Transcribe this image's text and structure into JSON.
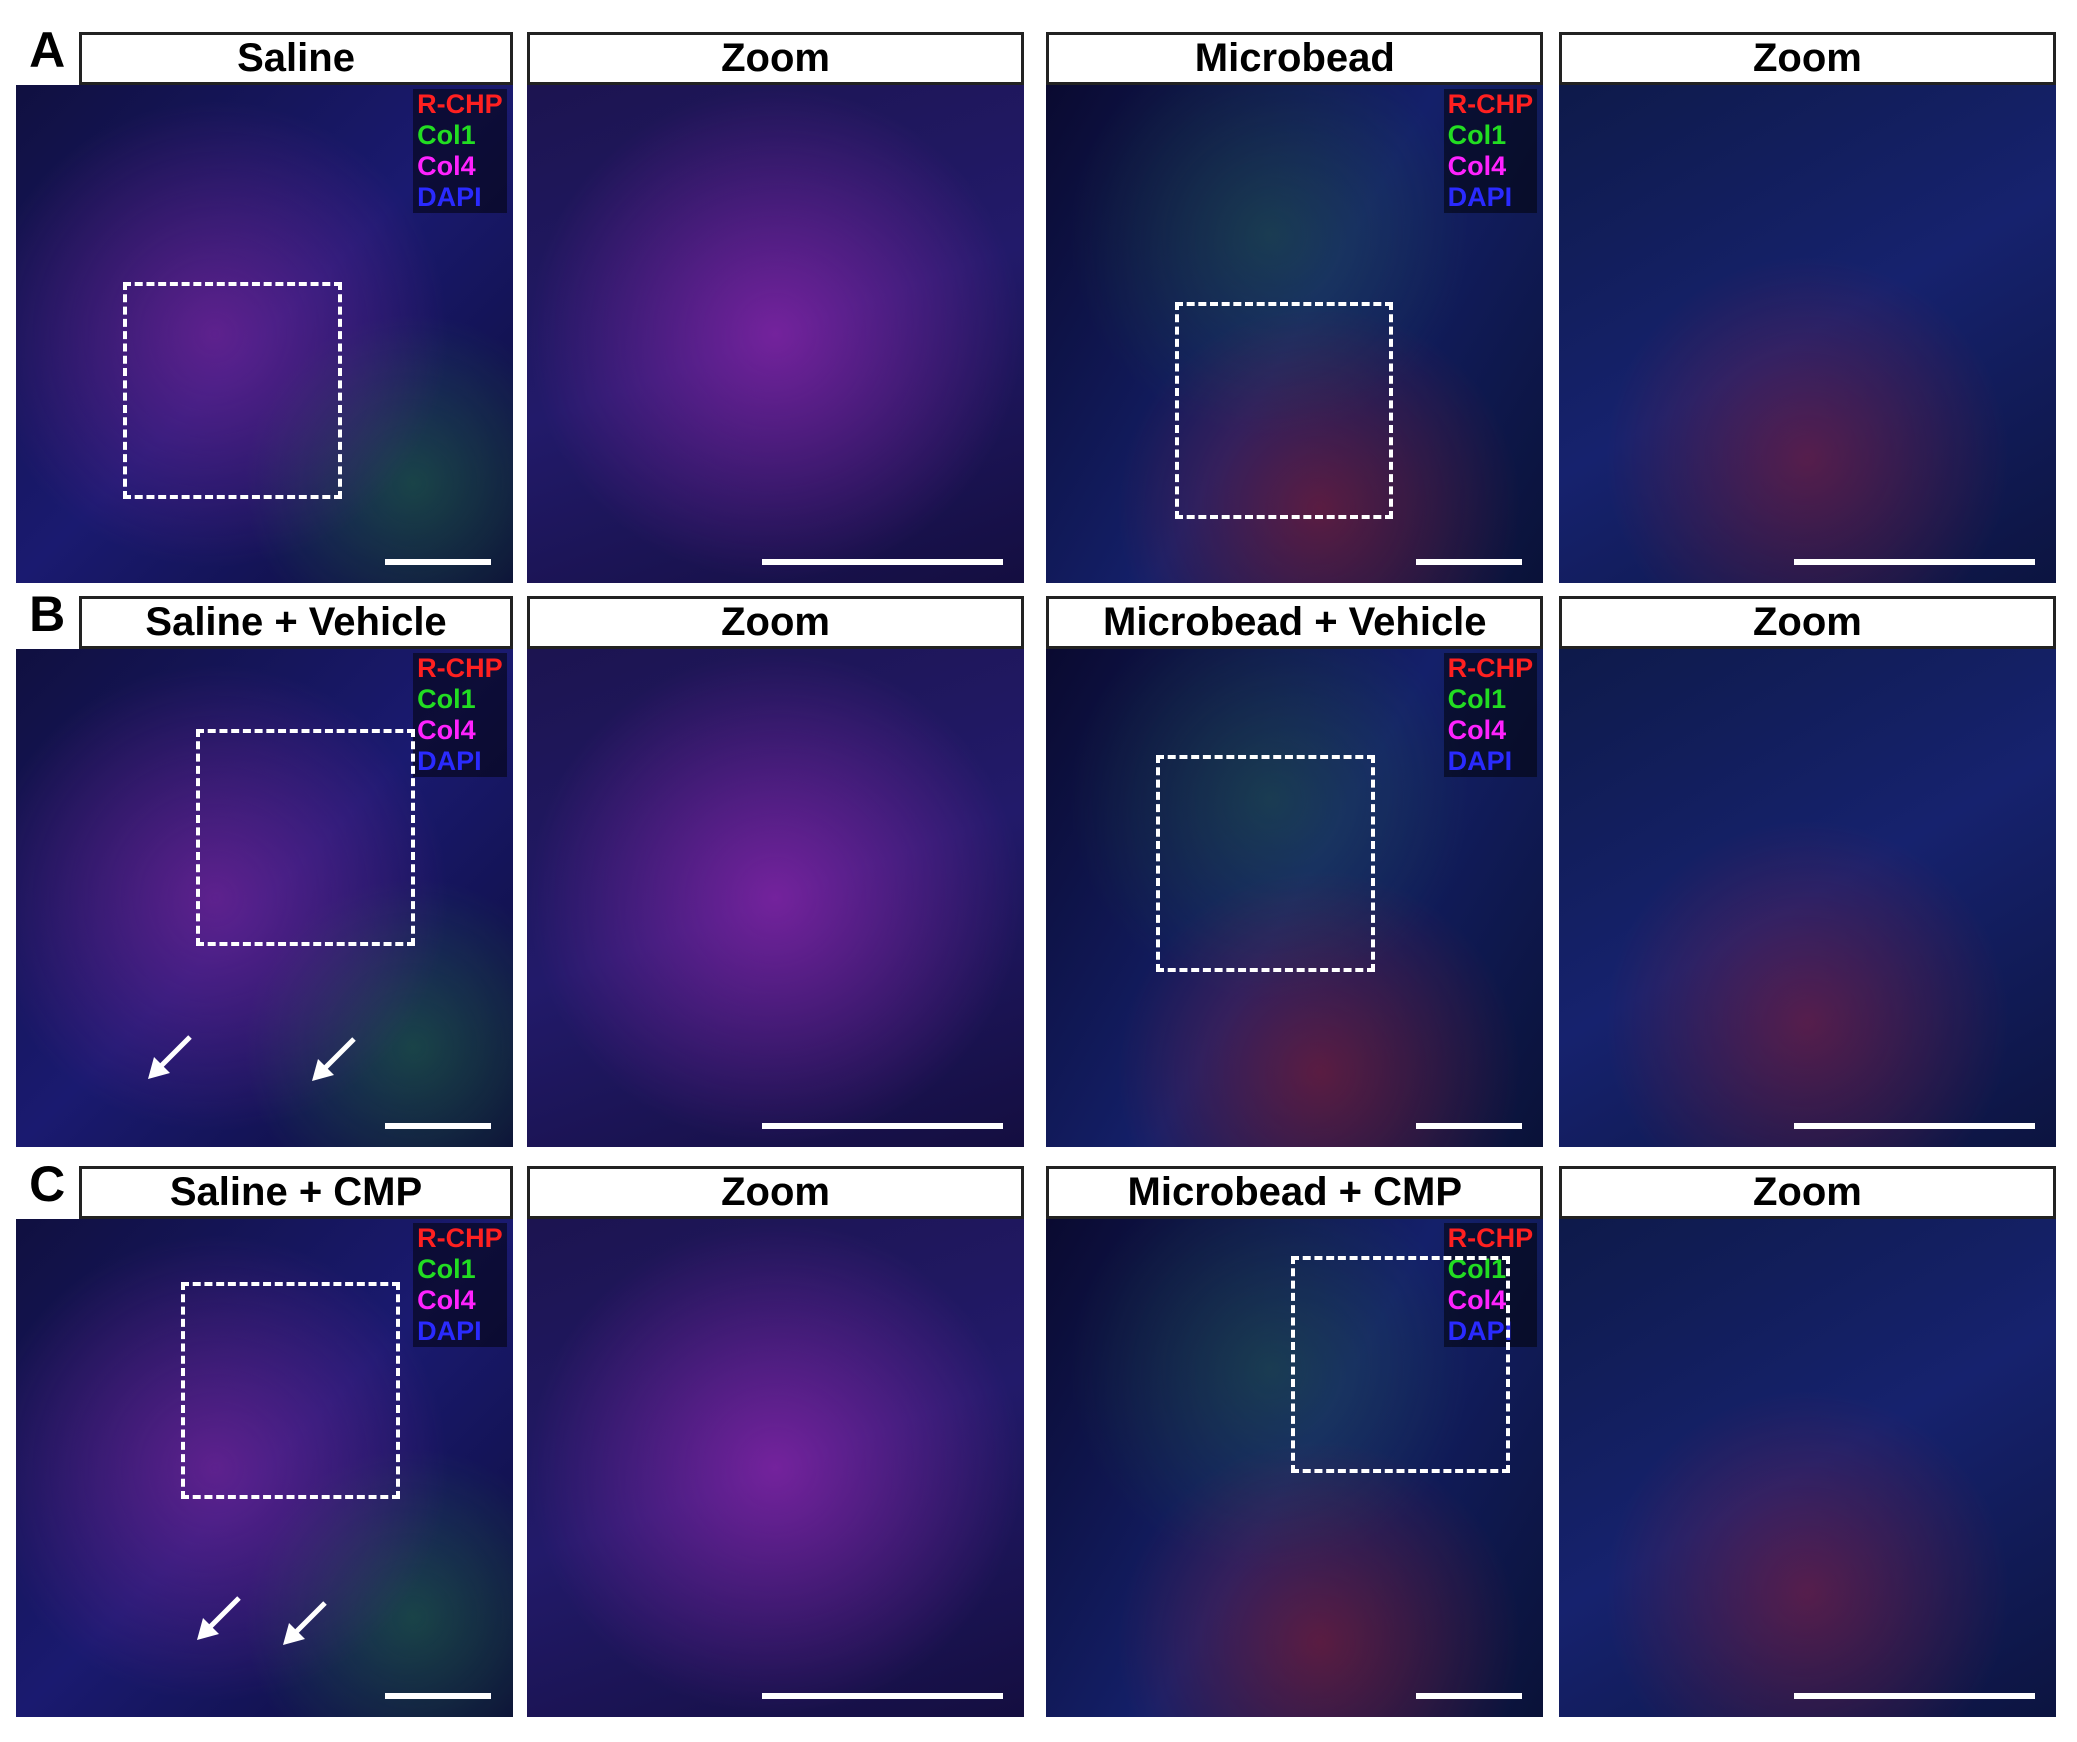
{
  "rows": [
    {
      "label": "A",
      "panels": [
        {
          "title": "Saline",
          "channels": [
            "R-CHP",
            "Col1",
            "Col4",
            "DAPI"
          ]
        },
        {
          "title": "Zoom"
        },
        {
          "title": "Microbead",
          "channels": [
            "R-CHP",
            "Col1",
            "Col4",
            "DAPI"
          ]
        },
        {
          "title": "Zoom"
        }
      ]
    },
    {
      "label": "B",
      "panels": [
        {
          "title": "Saline + Vehicle",
          "channels": [
            "R-CHP",
            "Col1",
            "Col4",
            "DAPI"
          ]
        },
        {
          "title": "Zoom"
        },
        {
          "title": "Microbead + Vehicle",
          "channels": [
            "R-CHP",
            "Col1",
            "Col4",
            "DAPI"
          ]
        },
        {
          "title": "Zoom"
        }
      ]
    },
    {
      "label": "C",
      "panels": [
        {
          "title": "Saline + CMP",
          "channels": [
            "R-CHP",
            "Col1",
            "Col4",
            "DAPI"
          ]
        },
        {
          "title": "Zoom"
        },
        {
          "title": "Microbead + CMP",
          "channels": [
            "R-CHP",
            "Col1",
            "Col4",
            "DAPI"
          ]
        },
        {
          "title": "Zoom"
        }
      ]
    }
  ]
}
